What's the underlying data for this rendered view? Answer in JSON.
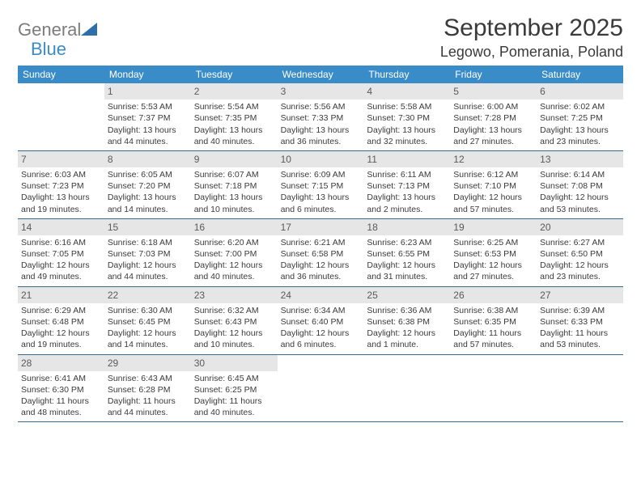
{
  "branding": {
    "logo_word1": "General",
    "logo_word2": "Blue"
  },
  "header": {
    "month_title": "September 2025",
    "location": "Legowo, Pomerania, Poland"
  },
  "style": {
    "header_bg": "#3a8cc9",
    "header_fg": "#ffffff",
    "daynum_bg": "#e6e6e6",
    "daynum_fg": "#5a5a5a",
    "text_color": "#3a3a3a",
    "rule_color": "#3a6a8a"
  },
  "weekdays": [
    "Sunday",
    "Monday",
    "Tuesday",
    "Wednesday",
    "Thursday",
    "Friday",
    "Saturday"
  ],
  "weeks": [
    [
      null,
      {
        "n": "1",
        "sr": "Sunrise: 5:53 AM",
        "ss": "Sunset: 7:37 PM",
        "dl": "Daylight: 13 hours and 44 minutes."
      },
      {
        "n": "2",
        "sr": "Sunrise: 5:54 AM",
        "ss": "Sunset: 7:35 PM",
        "dl": "Daylight: 13 hours and 40 minutes."
      },
      {
        "n": "3",
        "sr": "Sunrise: 5:56 AM",
        "ss": "Sunset: 7:33 PM",
        "dl": "Daylight: 13 hours and 36 minutes."
      },
      {
        "n": "4",
        "sr": "Sunrise: 5:58 AM",
        "ss": "Sunset: 7:30 PM",
        "dl": "Daylight: 13 hours and 32 minutes."
      },
      {
        "n": "5",
        "sr": "Sunrise: 6:00 AM",
        "ss": "Sunset: 7:28 PM",
        "dl": "Daylight: 13 hours and 27 minutes."
      },
      {
        "n": "6",
        "sr": "Sunrise: 6:02 AM",
        "ss": "Sunset: 7:25 PM",
        "dl": "Daylight: 13 hours and 23 minutes."
      }
    ],
    [
      {
        "n": "7",
        "sr": "Sunrise: 6:03 AM",
        "ss": "Sunset: 7:23 PM",
        "dl": "Daylight: 13 hours and 19 minutes."
      },
      {
        "n": "8",
        "sr": "Sunrise: 6:05 AM",
        "ss": "Sunset: 7:20 PM",
        "dl": "Daylight: 13 hours and 14 minutes."
      },
      {
        "n": "9",
        "sr": "Sunrise: 6:07 AM",
        "ss": "Sunset: 7:18 PM",
        "dl": "Daylight: 13 hours and 10 minutes."
      },
      {
        "n": "10",
        "sr": "Sunrise: 6:09 AM",
        "ss": "Sunset: 7:15 PM",
        "dl": "Daylight: 13 hours and 6 minutes."
      },
      {
        "n": "11",
        "sr": "Sunrise: 6:11 AM",
        "ss": "Sunset: 7:13 PM",
        "dl": "Daylight: 13 hours and 2 minutes."
      },
      {
        "n": "12",
        "sr": "Sunrise: 6:12 AM",
        "ss": "Sunset: 7:10 PM",
        "dl": "Daylight: 12 hours and 57 minutes."
      },
      {
        "n": "13",
        "sr": "Sunrise: 6:14 AM",
        "ss": "Sunset: 7:08 PM",
        "dl": "Daylight: 12 hours and 53 minutes."
      }
    ],
    [
      {
        "n": "14",
        "sr": "Sunrise: 6:16 AM",
        "ss": "Sunset: 7:05 PM",
        "dl": "Daylight: 12 hours and 49 minutes."
      },
      {
        "n": "15",
        "sr": "Sunrise: 6:18 AM",
        "ss": "Sunset: 7:03 PM",
        "dl": "Daylight: 12 hours and 44 minutes."
      },
      {
        "n": "16",
        "sr": "Sunrise: 6:20 AM",
        "ss": "Sunset: 7:00 PM",
        "dl": "Daylight: 12 hours and 40 minutes."
      },
      {
        "n": "17",
        "sr": "Sunrise: 6:21 AM",
        "ss": "Sunset: 6:58 PM",
        "dl": "Daylight: 12 hours and 36 minutes."
      },
      {
        "n": "18",
        "sr": "Sunrise: 6:23 AM",
        "ss": "Sunset: 6:55 PM",
        "dl": "Daylight: 12 hours and 31 minutes."
      },
      {
        "n": "19",
        "sr": "Sunrise: 6:25 AM",
        "ss": "Sunset: 6:53 PM",
        "dl": "Daylight: 12 hours and 27 minutes."
      },
      {
        "n": "20",
        "sr": "Sunrise: 6:27 AM",
        "ss": "Sunset: 6:50 PM",
        "dl": "Daylight: 12 hours and 23 minutes."
      }
    ],
    [
      {
        "n": "21",
        "sr": "Sunrise: 6:29 AM",
        "ss": "Sunset: 6:48 PM",
        "dl": "Daylight: 12 hours and 19 minutes."
      },
      {
        "n": "22",
        "sr": "Sunrise: 6:30 AM",
        "ss": "Sunset: 6:45 PM",
        "dl": "Daylight: 12 hours and 14 minutes."
      },
      {
        "n": "23",
        "sr": "Sunrise: 6:32 AM",
        "ss": "Sunset: 6:43 PM",
        "dl": "Daylight: 12 hours and 10 minutes."
      },
      {
        "n": "24",
        "sr": "Sunrise: 6:34 AM",
        "ss": "Sunset: 6:40 PM",
        "dl": "Daylight: 12 hours and 6 minutes."
      },
      {
        "n": "25",
        "sr": "Sunrise: 6:36 AM",
        "ss": "Sunset: 6:38 PM",
        "dl": "Daylight: 12 hours and 1 minute."
      },
      {
        "n": "26",
        "sr": "Sunrise: 6:38 AM",
        "ss": "Sunset: 6:35 PM",
        "dl": "Daylight: 11 hours and 57 minutes."
      },
      {
        "n": "27",
        "sr": "Sunrise: 6:39 AM",
        "ss": "Sunset: 6:33 PM",
        "dl": "Daylight: 11 hours and 53 minutes."
      }
    ],
    [
      {
        "n": "28",
        "sr": "Sunrise: 6:41 AM",
        "ss": "Sunset: 6:30 PM",
        "dl": "Daylight: 11 hours and 48 minutes."
      },
      {
        "n": "29",
        "sr": "Sunrise: 6:43 AM",
        "ss": "Sunset: 6:28 PM",
        "dl": "Daylight: 11 hours and 44 minutes."
      },
      {
        "n": "30",
        "sr": "Sunrise: 6:45 AM",
        "ss": "Sunset: 6:25 PM",
        "dl": "Daylight: 11 hours and 40 minutes."
      },
      null,
      null,
      null,
      null
    ]
  ]
}
